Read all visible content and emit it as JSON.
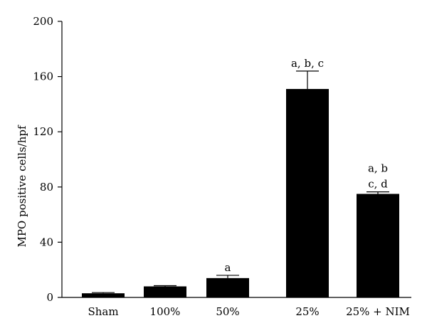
{
  "chart_data": {
    "type": "bar",
    "title": "",
    "xlabel": "",
    "ylabel": "MPO positive cells/hpf",
    "ylim": [
      0,
      200
    ],
    "yticks": [
      "0",
      "40",
      "80",
      "120",
      "160",
      "200"
    ],
    "grid": false,
    "legend": "none",
    "bar_color": "#000000",
    "categories": [
      "Sham",
      "100%",
      "50%",
      "25%",
      "25% + NIM"
    ],
    "values": [
      3,
      8,
      14,
      151,
      75
    ],
    "errors": [
      0.5,
      0.5,
      2,
      13,
      1.5
    ],
    "annotations": [
      [],
      [],
      [
        "a"
      ],
      [
        "a, b, c"
      ],
      [
        "a, b",
        "c, d"
      ]
    ]
  }
}
